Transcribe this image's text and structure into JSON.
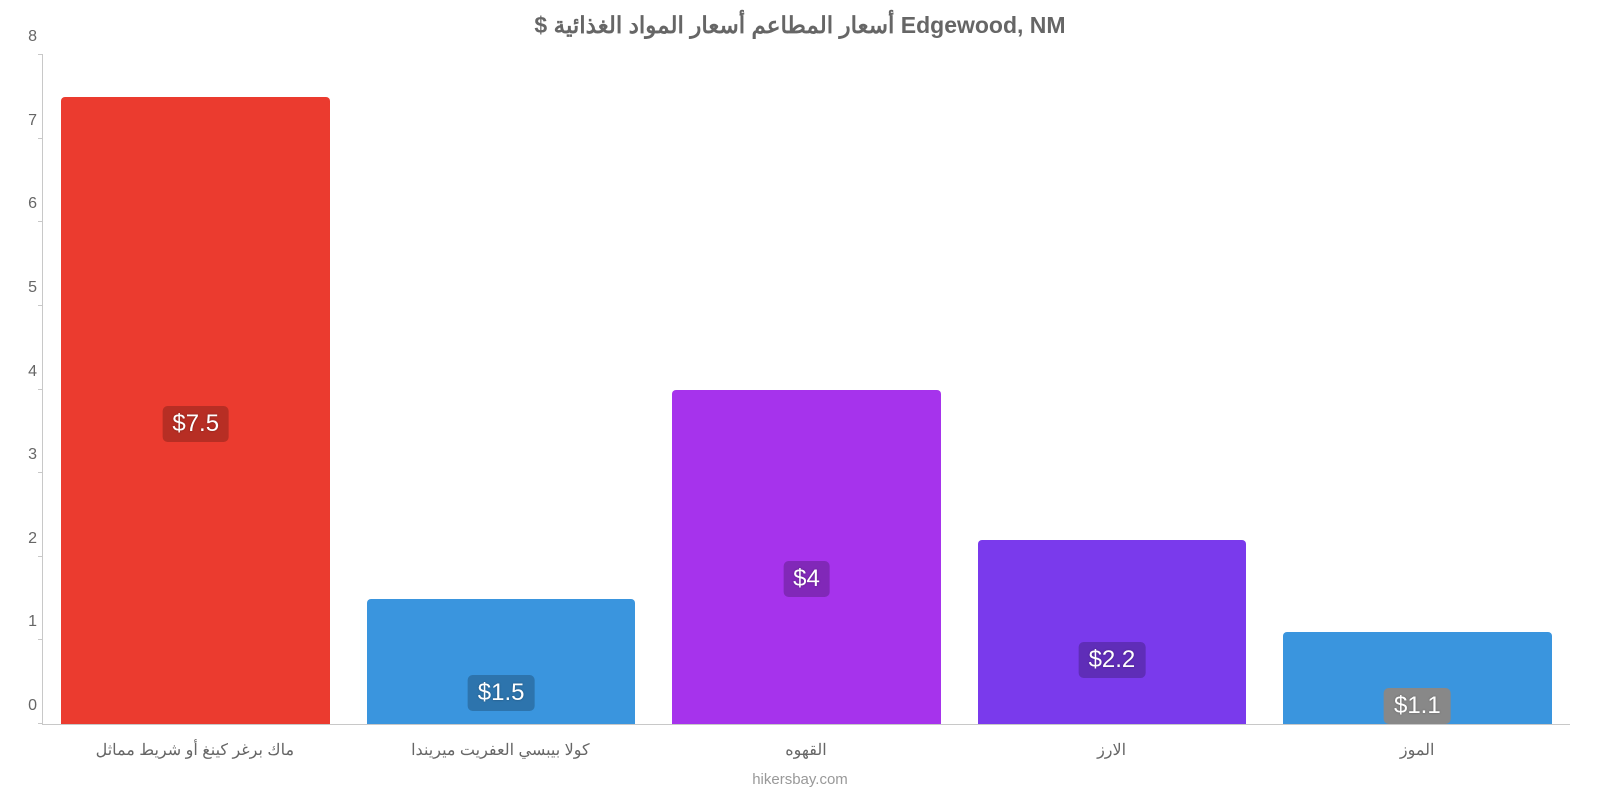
{
  "chart": {
    "type": "bar",
    "title": "$ أسعار المطاعم أسعار المواد الغذائية Edgewood, NM",
    "title_color": "#666666",
    "title_fontsize": 23,
    "background_color": "#ffffff",
    "axis_color": "#c8c8c8",
    "tick_label_color": "#666666",
    "tick_fontsize": 16,
    "ylim_min": 0,
    "ylim_max": 8,
    "ytick_step": 1,
    "yticks": [
      "0",
      "1",
      "2",
      "3",
      "4",
      "5",
      "6",
      "7",
      "8"
    ],
    "bar_width_pct": 88,
    "value_label_fontsize": 24,
    "value_label_text_color": "#ffffff",
    "categories": [
      "ماك برغر كينغ أو شريط مماثل",
      "كولا بيبسي العفريت ميريندا",
      "القهوه",
      "الارز",
      "الموز"
    ],
    "values": [
      7.5,
      1.5,
      4,
      2.2,
      1.1
    ],
    "value_display": [
      "$7.5",
      "$1.5",
      "$4",
      "$2.2",
      "$1.1"
    ],
    "bar_colors": [
      "#eb3b2f",
      "#3a95de",
      "#a633ec",
      "#7a3aec",
      "#3a95de"
    ],
    "label_bg_colors": [
      "#b72e24",
      "#2d74ad",
      "#8128b8",
      "#5f2db8",
      "#888888"
    ],
    "label_vpos_pct": [
      45,
      10,
      38,
      25,
      0
    ],
    "credit": "hikersbay.com",
    "credit_color": "#999999"
  }
}
